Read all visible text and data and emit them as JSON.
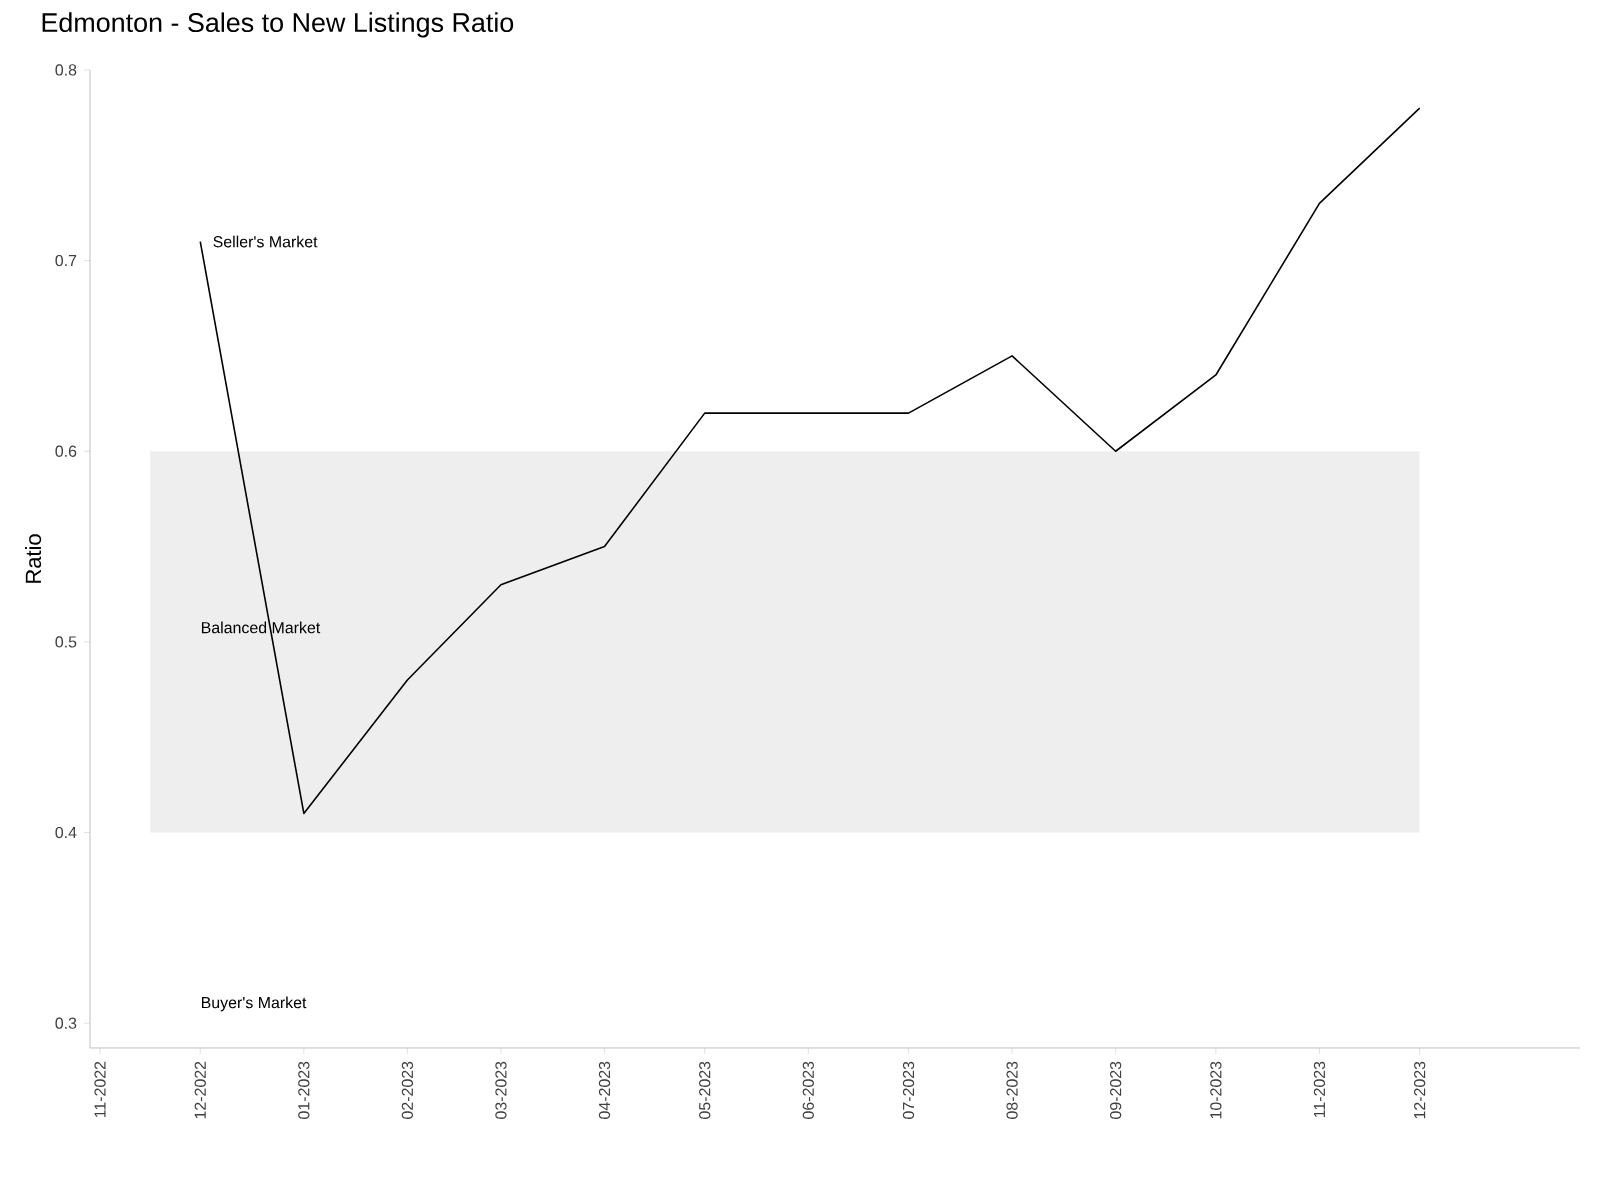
{
  "chart_data": {
    "type": "line",
    "title": "Edmonton - Sales to New Listings Ratio",
    "ylabel": "Ratio",
    "x": [
      "2022-12",
      "2023-01",
      "2023-02",
      "2023-03",
      "2023-04",
      "2023-05",
      "2023-06",
      "2023-07",
      "2023-08",
      "2023-09",
      "2023-10",
      "2023-11",
      "2023-12"
    ],
    "series": [
      {
        "color": "#000000",
        "values": [
          0.71,
          0.41,
          0.48,
          0.53,
          0.55,
          0.62,
          0.62,
          0.62,
          0.65,
          0.6,
          0.64,
          0.73,
          0.78
        ]
      }
    ],
    "xlim": [
      "2022-10-29",
      "2024-01-18"
    ],
    "xticks": [
      {
        "value": "2022-11",
        "label": "11-2022"
      },
      {
        "value": "2022-12",
        "label": "12-2022"
      },
      {
        "value": "2023-01",
        "label": "01-2023"
      },
      {
        "value": "2023-02",
        "label": "02-2023"
      },
      {
        "value": "2023-03",
        "label": "03-2023"
      },
      {
        "value": "2023-04",
        "label": "04-2023"
      },
      {
        "value": "2023-05",
        "label": "05-2023"
      },
      {
        "value": "2023-06",
        "label": "06-2023"
      },
      {
        "value": "2023-07",
        "label": "07-2023"
      },
      {
        "value": "2023-08",
        "label": "08-2023"
      },
      {
        "value": "2023-09",
        "label": "09-2023"
      },
      {
        "value": "2023-10",
        "label": "10-2023"
      },
      {
        "value": "2023-11",
        "label": "11-2023"
      },
      {
        "value": "2023-12",
        "label": "12-2023"
      }
    ],
    "ylim": [
      0.287,
      0.8
    ],
    "yticks": [
      0.3,
      0.4,
      0.5,
      0.6,
      0.7,
      0.8
    ],
    "bands": [
      {
        "axis": "y",
        "from": 0.4,
        "to": 0.6,
        "color": "#eeeeee"
      }
    ],
    "annotations": [
      {
        "text": "Seller's Market",
        "x": "2022-12",
        "y": 0.71
      },
      "Balanced Market",
      "Buyer's Market"
    ],
    "grid": false,
    "marker": "none",
    "line_style": "solid"
  }
}
